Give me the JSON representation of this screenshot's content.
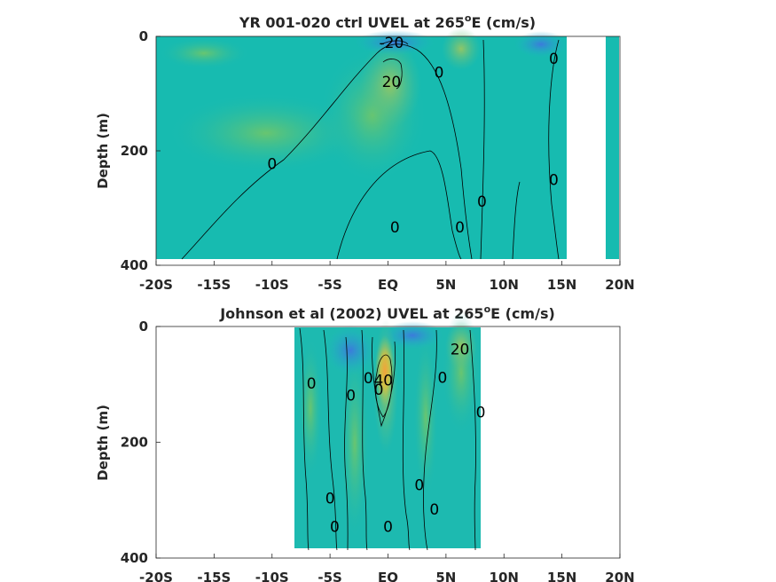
{
  "chart_data": [
    {
      "type": "heatmap",
      "title_main": "YR 001-020 ctrl UVEL at 265",
      "title_sup": "o",
      "title_end": "E (cm/s)",
      "ylabel": "Depth (m)",
      "xlim": [
        -20,
        20
      ],
      "ylim": [
        0,
        400
      ],
      "y_reversed": true,
      "x_ticks": [
        -20,
        -15,
        -10,
        -5,
        0,
        5,
        10,
        15,
        20
      ],
      "x_tick_labels": [
        "-20S",
        "-15S",
        "-10S",
        "-5S",
        "EQ",
        "5N",
        "10N",
        "15N",
        "20N"
      ],
      "y_ticks": [
        0,
        200,
        400
      ],
      "y_tick_labels": [
        "0",
        "200",
        "400"
      ],
      "data_extent": {
        "x": [
          -20,
          15
        ],
        "depth": [
          0,
          385
        ]
      },
      "contour_labels": [
        {
          "text": "-20",
          "x": 0.3,
          "depth": 20
        },
        {
          "text": "20",
          "x": 0.3,
          "depth": 88
        },
        {
          "text": "0",
          "x": 4.4,
          "depth": 72
        },
        {
          "text": "0",
          "x": 14.3,
          "depth": 48
        },
        {
          "text": "0",
          "x": -10,
          "depth": 232
        },
        {
          "text": "0",
          "x": 8.1,
          "depth": 298
        },
        {
          "text": "0",
          "x": 14.3,
          "depth": 260
        },
        {
          "text": "0",
          "x": 0.6,
          "depth": 343
        },
        {
          "text": "0",
          "x": 6.2,
          "depth": 343
        }
      ]
    },
    {
      "type": "heatmap",
      "title_main": "Johnson et al (2002) UVEL at 265",
      "title_sup": "o",
      "title_end": "E (cm/s)",
      "ylabel": "Depth (m)",
      "xlim": [
        -20,
        20
      ],
      "ylim": [
        0,
        400
      ],
      "y_reversed": true,
      "x_ticks": [
        -20,
        -15,
        -10,
        -5,
        0,
        5,
        10,
        15,
        20
      ],
      "x_tick_labels": [
        "-20S",
        "-15S",
        "-10S",
        "-5S",
        "EQ",
        "5N",
        "10N",
        "15N",
        "20N"
      ],
      "y_ticks": [
        0,
        200,
        400
      ],
      "y_tick_labels": [
        "0",
        "200",
        "400"
      ],
      "data_extent": {
        "x": [
          -8,
          8
        ],
        "depth": [
          0,
          385
        ]
      },
      "contour_labels": [
        {
          "text": "20",
          "x": 6.2,
          "depth": 48
        },
        {
          "text": "40",
          "x": -0.4,
          "depth": 102
        },
        {
          "text": "0",
          "x": -6.6,
          "depth": 107
        },
        {
          "text": "0",
          "x": -3.2,
          "depth": 128
        },
        {
          "text": "0",
          "x": -1.7,
          "depth": 98
        },
        {
          "text": "0",
          "x": -0.8,
          "depth": 118
        },
        {
          "text": "0",
          "x": 4.7,
          "depth": 97
        },
        {
          "text": "0",
          "x": 8,
          "depth": 157
        },
        {
          "text": "0",
          "x": 2.7,
          "depth": 283
        },
        {
          "text": "0",
          "x": -5,
          "depth": 306
        },
        {
          "text": "0",
          "x": 4,
          "depth": 325
        },
        {
          "text": "0",
          "x": -4.6,
          "depth": 355
        },
        {
          "text": "0",
          "x": 0,
          "depth": 355
        }
      ]
    }
  ]
}
